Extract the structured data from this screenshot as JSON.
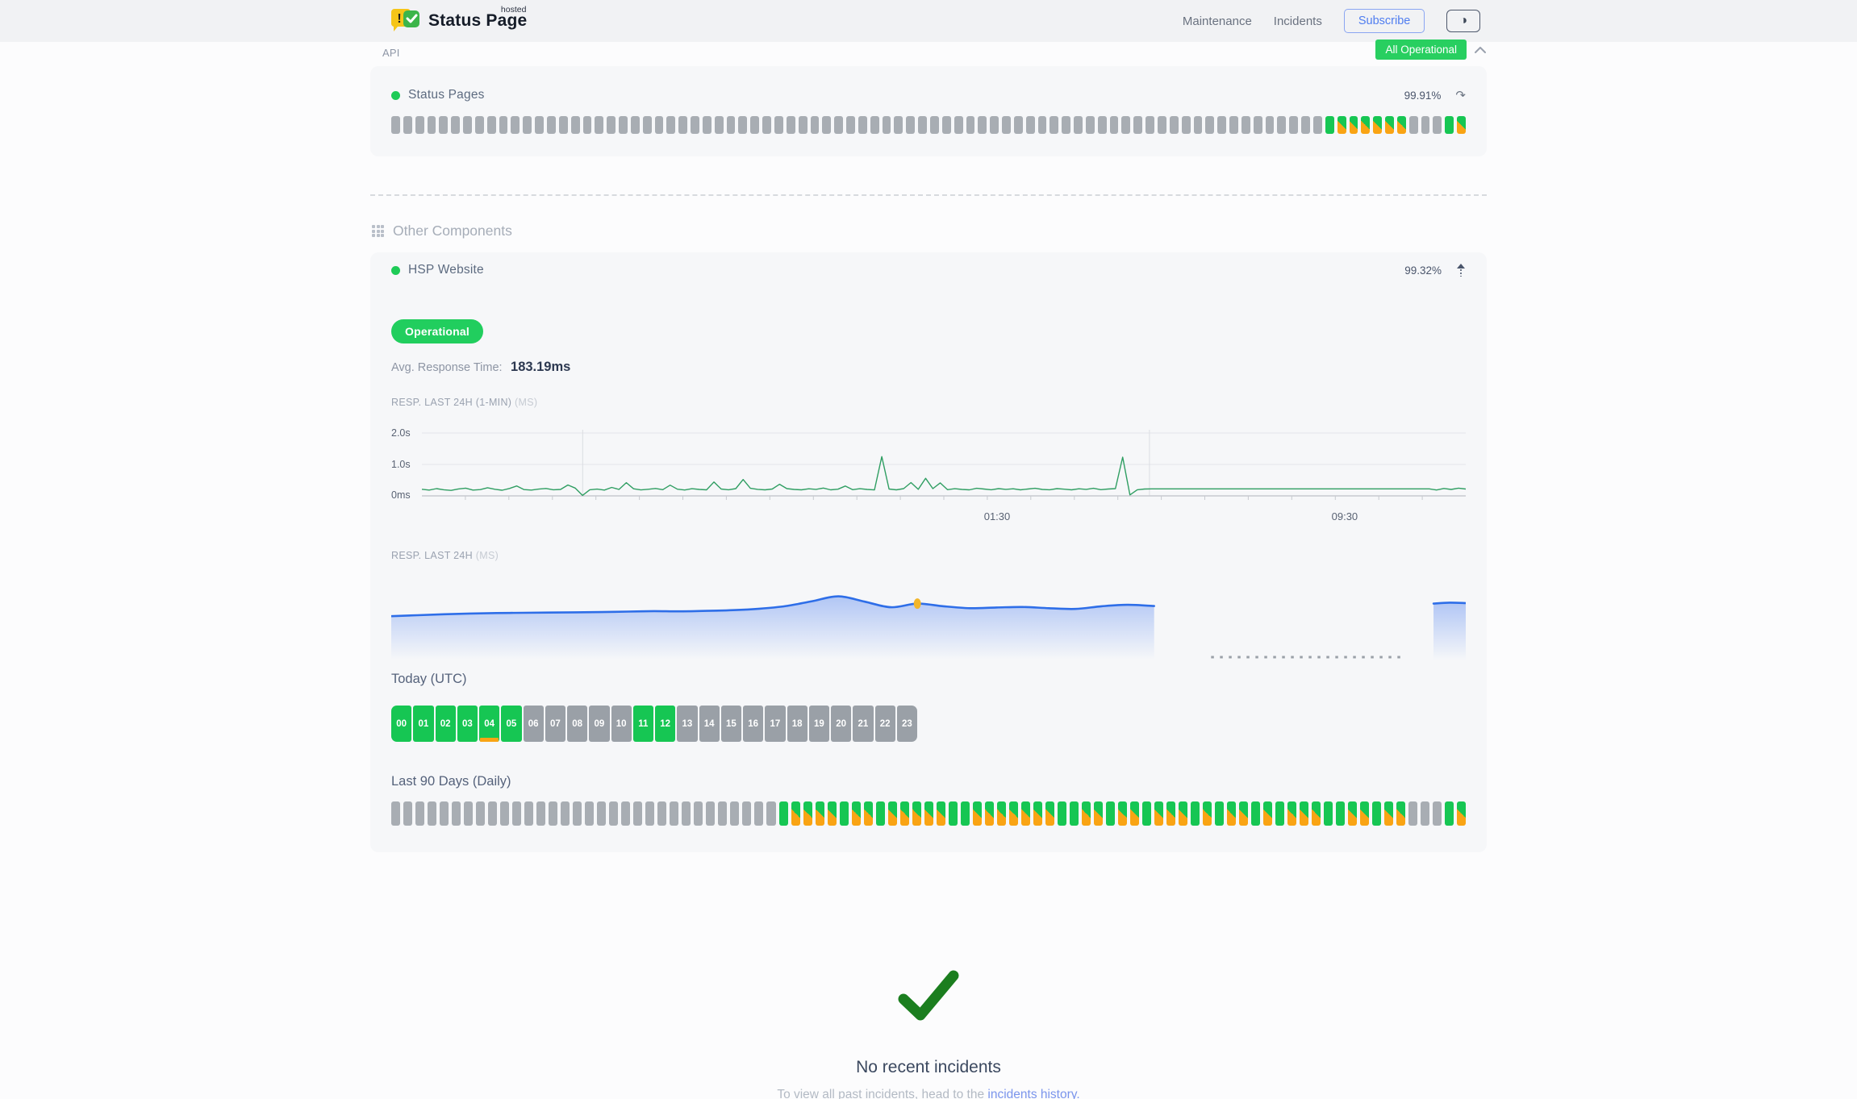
{
  "header": {
    "brand": {
      "name": "Status Page",
      "superscript": "hosted",
      "exclaim": "!",
      "check": "✓"
    },
    "nav": [
      {
        "label": "Maintenance"
      },
      {
        "label": "Incidents"
      }
    ],
    "subscribe_label": "Subscribe",
    "theme_toggle_icon": "◑",
    "status_badge": "All Operational"
  },
  "sections": {
    "api": {
      "title": "API",
      "component": {
        "name": "Status Pages",
        "uptime": "99.91%",
        "refresh_icon": "↷",
        "bar_pattern": "xxxxxxxxxxxxxxxxxxxxxxxxxxxxxxxxxxxxxxxxxxxxxxxxxxxxxxxxxxxxxxxxxxxxxxxxxxxxxxgmmmmmmxxxgm"
      }
    },
    "other": {
      "title": "Other Components",
      "component": {
        "name": "HSP Website",
        "uptime": "99.32%",
        "status": "Operational",
        "avg_response_label": "Avg. Response Time:",
        "avg_response_value": "183.19ms",
        "chart1_label": "RESP. LAST 24H (1-MIN)",
        "chart1_unit": "(MS)",
        "chart2_label": "RESP. LAST 24H",
        "chart2_unit": "(MS)",
        "today_label": "Today (UTC)",
        "hours": [
          {
            "label": "00",
            "state": "up"
          },
          {
            "label": "01",
            "state": "up"
          },
          {
            "label": "02",
            "state": "up"
          },
          {
            "label": "03",
            "state": "up"
          },
          {
            "label": "04",
            "state": "up",
            "partial": true
          },
          {
            "label": "05",
            "state": "up"
          },
          {
            "label": "06",
            "state": "unknown"
          },
          {
            "label": "07",
            "state": "unknown"
          },
          {
            "label": "08",
            "state": "unknown"
          },
          {
            "label": "09",
            "state": "unknown"
          },
          {
            "label": "10",
            "state": "unknown"
          },
          {
            "label": "11",
            "state": "up"
          },
          {
            "label": "12",
            "state": "up"
          },
          {
            "label": "13",
            "state": "unknown"
          },
          {
            "label": "14",
            "state": "unknown"
          },
          {
            "label": "15",
            "state": "unknown"
          },
          {
            "label": "16",
            "state": "unknown"
          },
          {
            "label": "17",
            "state": "unknown"
          },
          {
            "label": "18",
            "state": "unknown"
          },
          {
            "label": "19",
            "state": "unknown"
          },
          {
            "label": "20",
            "state": "unknown"
          },
          {
            "label": "21",
            "state": "unknown"
          },
          {
            "label": "22",
            "state": "unknown"
          },
          {
            "label": "23",
            "state": "unknown"
          }
        ],
        "last90_label": "Last 90 Days (Daily)",
        "bar_pattern": "xxxxxxxxxxxxxxxxxxxxxxxxxxxxxxxxgmmmmgmmgmmmmmggmmmmmmmggmmgmmgmmmgmgmmgmgmmmggmmgmmxxxgm"
      }
    }
  },
  "incidents": {
    "title": "No recent incidents",
    "subtitle_prefix": "To view all past incidents, head to the ",
    "link_text": "incidents history",
    "suffix": "."
  },
  "colors": {
    "green": "#16c653",
    "orange": "#f9a414",
    "segment_gray": "#a8adb3",
    "badge_green": "#28cf60",
    "accent_blue": "#4f7df0",
    "link_blue": "#7b95ec",
    "line_green": "#2f9e62",
    "area_blue": "#2e6ee8",
    "marker_yellow": "#f2b62b",
    "check_green": "#1b7e1f"
  },
  "chart_data": [
    {
      "type": "line",
      "title": "RESP. LAST 24H (1-MIN) (MS)",
      "ylim": [
        0,
        2000
      ],
      "y_ticks": [
        "2.0s",
        "1.0s",
        "0ms"
      ],
      "x_ticks": [
        {
          "label": "01:30",
          "f": 0.551
        },
        {
          "label": "09:30",
          "f": 0.884
        }
      ],
      "vgrid_f": [
        0.154,
        0.697
      ],
      "hourly_tick_count": 24,
      "values_ms": [
        210,
        185,
        230,
        195,
        175,
        220,
        245,
        185,
        200,
        260,
        210,
        180,
        235,
        315,
        200,
        185,
        215,
        235,
        195,
        205,
        345,
        250,
        15,
        195,
        215,
        185,
        270,
        205,
        420,
        225,
        190,
        210,
        235,
        198,
        340,
        212,
        188,
        228,
        205,
        192,
        440,
        218,
        196,
        232,
        520,
        242,
        208,
        192,
        218,
        368,
        232,
        206,
        192,
        226,
        208,
        248,
        192,
        212,
        312,
        198,
        228,
        206,
        190,
        1250,
        218,
        192,
        232,
        422,
        208,
        560,
        232,
        412,
        198,
        228,
        206,
        192,
        242,
        218,
        196,
        232,
        208,
        226,
        192,
        218,
        242,
        206,
        196,
        232,
        212,
        192,
        226,
        208,
        242,
        198,
        218,
        232,
        1230,
        32,
        195,
        218,
        222,
        222,
        222,
        222,
        222,
        222,
        222,
        222,
        222,
        222,
        222,
        222,
        222,
        222,
        222,
        222,
        222,
        222,
        222,
        222,
        222,
        222,
        222,
        222,
        222,
        222,
        222,
        222,
        222,
        222,
        222,
        222,
        222,
        222,
        222,
        222,
        222,
        222,
        222,
        188,
        236,
        204,
        246,
        218
      ]
    },
    {
      "type": "area",
      "title": "RESP. LAST 24H (MS)",
      "segments": [
        {
          "x_start_f": 0.0,
          "x_end_f": 0.71,
          "values_ms": [
            196,
            200,
            204,
            207,
            209,
            210,
            211,
            212,
            213,
            215,
            217,
            216,
            218,
            221,
            227,
            238,
            258,
            278,
            256,
            233,
            248,
            237,
            229,
            232,
            234,
            229,
            226,
            237,
            243,
            238
          ]
        },
        {
          "x_start_f": 0.97,
          "x_end_f": 1.0,
          "values_ms": [
            248,
            252,
            250
          ]
        }
      ],
      "marker": {
        "segment": 0,
        "index": 20
      },
      "no_data_dash": {
        "x_start_f": 0.763,
        "x_end_f": 0.942
      }
    }
  ]
}
